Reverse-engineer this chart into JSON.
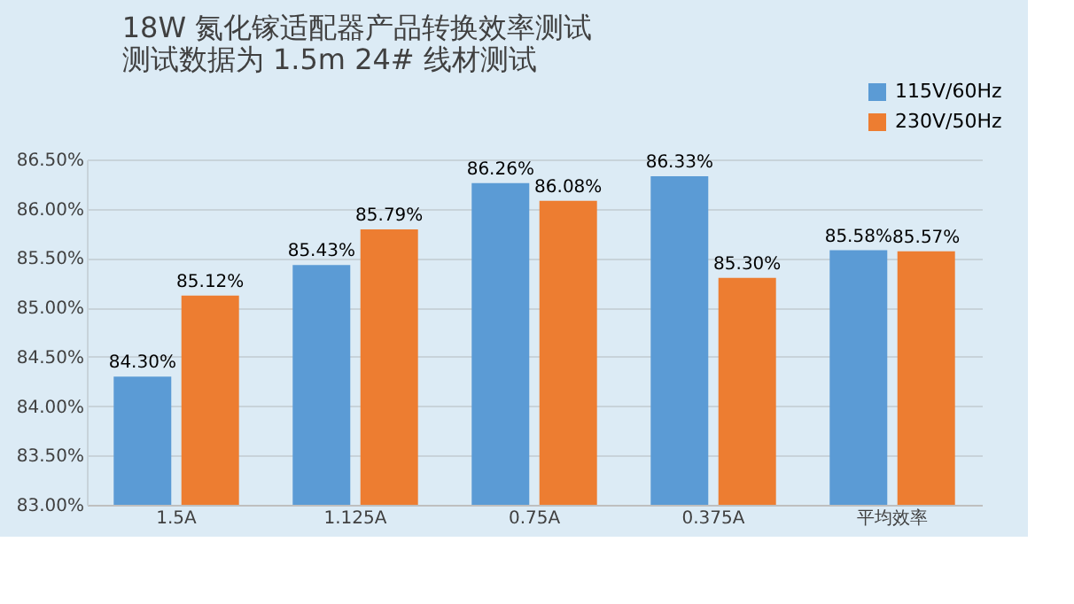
{
  "chart_data": {
    "type": "bar",
    "title": [
      "18W 氮化镓适配器产品转换效率测试",
      "测试数据为 1.5m 24# 线材测试"
    ],
    "categories": [
      "1.5A",
      "1.125A",
      "0.75A",
      "0.375A",
      "平均效率"
    ],
    "series": [
      {
        "name": "115V/60Hz",
        "color": "#5b9bd5",
        "values": [
          84.3,
          85.43,
          86.26,
          86.33,
          85.58
        ],
        "value_labels": [
          "84.30%",
          "85.43%",
          "86.26%",
          "86.33%",
          "85.58%"
        ]
      },
      {
        "name": "230V/50Hz",
        "color": "#ed7d31",
        "values": [
          85.12,
          85.79,
          86.08,
          85.3,
          85.57
        ],
        "value_labels": [
          "85.12%",
          "85.79%",
          "86.08%",
          "85.30%",
          "85.57%"
        ]
      }
    ],
    "ylim": [
      83,
      86.5
    ],
    "yticks": [
      {
        "value": 83,
        "label": "83.00%"
      },
      {
        "value": 83.5,
        "label": "83.50%"
      },
      {
        "value": 84,
        "label": "84.00%"
      },
      {
        "value": 84.5,
        "label": "84.50%"
      },
      {
        "value": 85,
        "label": "85.00%"
      },
      {
        "value": 85.5,
        "label": "85.50%"
      },
      {
        "value": 86,
        "label": "86.00%"
      },
      {
        "value": 86.5,
        "label": "86.50%"
      }
    ],
    "grid": "y",
    "legend": "top right"
  }
}
